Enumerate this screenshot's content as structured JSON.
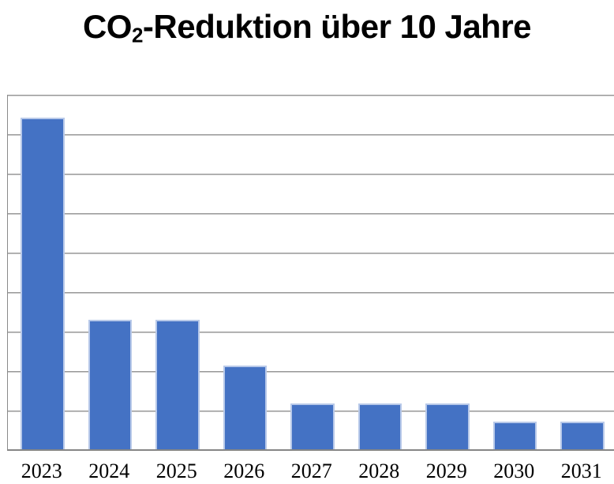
{
  "title": {
    "prefix": "CO",
    "subscript": "2",
    "suffix": "-Reduktion über 10 Jahre"
  },
  "chart_data": {
    "type": "bar",
    "title": "CO2-Reduktion über 10 Jahre",
    "categories": [
      "2023",
      "2024",
      "2025",
      "2026",
      "2027",
      "2028",
      "2029",
      "2030",
      "2031"
    ],
    "values": [
      8.43,
      3.3,
      3.3,
      2.14,
      1.18,
      1.18,
      1.18,
      0.73,
      0.73
    ],
    "values_note": "No y-axis tick labels are visible in the image; values are expressed in gridline units (1 unit = one horizontal gridline interval).",
    "xlabel": "",
    "ylabel": "",
    "ylim": [
      0,
      9
    ],
    "grid": "horizontal gridlines, 9 equal intervals, no y-axis labels",
    "legend": "none",
    "colors": {
      "bar_fill": "#4472C4",
      "bar_border": "#B8C9E9",
      "gridline": "#979797",
      "axis_line": "#868686",
      "title_text": "#000000",
      "tick_text": "#000000",
      "background": "#FFFFFF"
    }
  }
}
